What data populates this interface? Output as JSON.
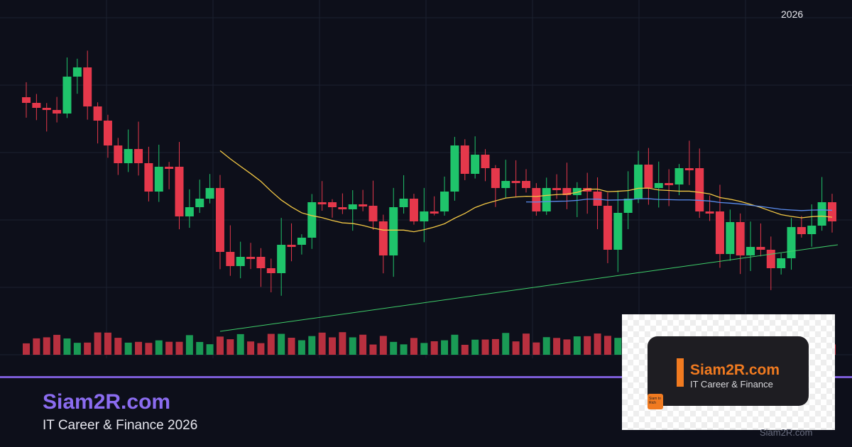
{
  "header": {
    "year": "2026"
  },
  "brand": {
    "name": "Siam2R.com",
    "tagline": "IT Career & Finance 2026"
  },
  "logo": {
    "name": "Siam2R.com",
    "subtitle": "IT Career & Finance",
    "mini": "Siam to Rich"
  },
  "footer": {
    "site": "Siam2R.com"
  }
}
